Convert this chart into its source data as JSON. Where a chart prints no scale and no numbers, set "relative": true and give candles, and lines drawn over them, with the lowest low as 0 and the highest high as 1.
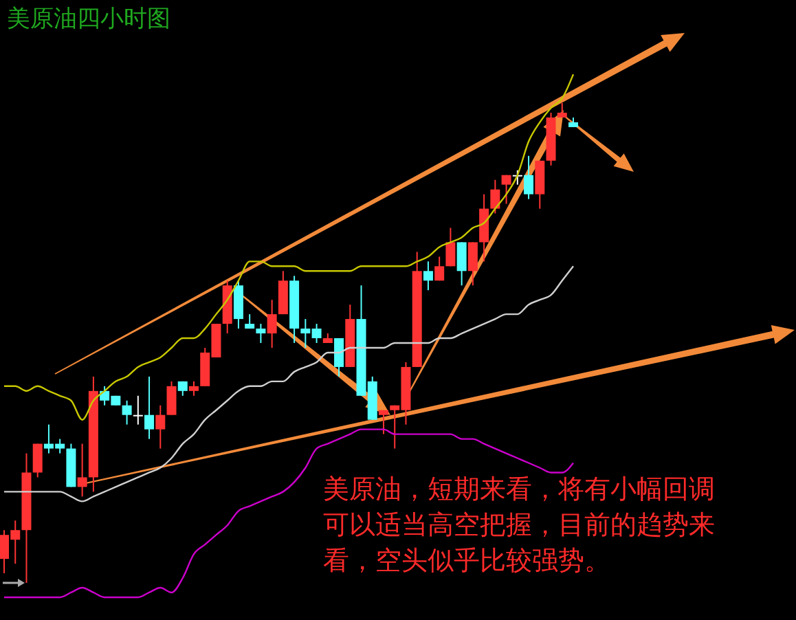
{
  "chart_data": {
    "type": "candlestick",
    "title": "美原油四小时图",
    "relative": true,
    "annotations": [
      "美原油，短期来看，将有小幅回调可以适当高空把握，目前的趋势来看，空头似乎比较强势。"
    ],
    "categories": [
      null,
      null,
      null,
      null,
      null,
      null,
      null,
      null,
      null,
      null,
      null,
      null,
      null,
      null,
      null,
      null,
      null,
      null,
      null,
      null,
      null,
      null,
      null,
      null,
      null,
      null,
      null,
      null,
      null,
      null,
      null,
      null,
      null,
      null,
      null,
      null,
      null,
      null,
      null,
      null,
      null,
      null,
      null,
      null,
      null,
      null,
      null,
      null,
      null,
      null,
      null,
      null
    ],
    "ohlc": [
      [
        0.05,
        0.11,
        0.02,
        0.1
      ],
      [
        0.09,
        0.13,
        0.04,
        0.11
      ],
      [
        0.11,
        0.27,
        0,
        0.23
      ],
      [
        0.23,
        0.29,
        0.22,
        0.29
      ],
      [
        0.29,
        0.33,
        0.27,
        0.28
      ],
      [
        0.29,
        0.3,
        0.27,
        0.28
      ],
      [
        0.28,
        0.29,
        0.2,
        0.2
      ],
      [
        0.2,
        0.29,
        0.18,
        0.22
      ],
      [
        0.22,
        0.43,
        0.19,
        0.4
      ],
      [
        0.4,
        0.41,
        0.37,
        0.38
      ],
      [
        0.39,
        0.39,
        0.37,
        0.37
      ],
      [
        0.37,
        0.38,
        0.33,
        0.35
      ],
      [
        0.35,
        0.39,
        0.33,
        0.35
      ],
      [
        0.35,
        0.43,
        0.3,
        0.32
      ],
      [
        0.32,
        0.37,
        0.28,
        0.35
      ],
      [
        0.35,
        0.42,
        0.35,
        0.41
      ],
      [
        0.42,
        0.42,
        0.39,
        0.4
      ],
      [
        0.4,
        0.42,
        0.39,
        0.41
      ],
      [
        0.41,
        0.49,
        0.41,
        0.48
      ],
      [
        0.47,
        0.54,
        0.47,
        0.54
      ],
      [
        0.54,
        0.63,
        0.52,
        0.62
      ],
      [
        0.62,
        0.63,
        0.53,
        0.55
      ],
      [
        0.54,
        0.56,
        0.53,
        0.53
      ],
      [
        0.53,
        0.54,
        0.5,
        0.52
      ],
      [
        0.52,
        0.59,
        0.49,
        0.56
      ],
      [
        0.56,
        0.65,
        0.56,
        0.63
      ],
      [
        0.63,
        0.64,
        0.5,
        0.53
      ],
      [
        0.53,
        0.55,
        0.49,
        0.52
      ],
      [
        0.53,
        0.54,
        0.5,
        0.51
      ],
      [
        0.5,
        0.52,
        0.5,
        0.51
      ],
      [
        0.51,
        0.51,
        0.43,
        0.45
      ],
      [
        0.45,
        0.58,
        0.45,
        0.55
      ],
      [
        0.55,
        0.62,
        0.39,
        0.39
      ],
      [
        0.42,
        0.43,
        0.34,
        0.34
      ],
      [
        0.35,
        0.36,
        0.31,
        0.36
      ],
      [
        0.36,
        0.37,
        0.28,
        0.37
      ],
      [
        0.36,
        0.46,
        0.33,
        0.45
      ],
      [
        0.45,
        0.69,
        0.45,
        0.65
      ],
      [
        0.65,
        0.67,
        0.61,
        0.63
      ],
      [
        0.63,
        0.68,
        0.63,
        0.66
      ],
      [
        0.66,
        0.74,
        0.66,
        0.71
      ],
      [
        0.71,
        0.71,
        0.62,
        0.65
      ],
      [
        0.65,
        0.71,
        0.62,
        0.71
      ],
      [
        0.71,
        0.81,
        0.67,
        0.78
      ],
      [
        0.78,
        0.84,
        0.77,
        0.82
      ],
      [
        0.83,
        0.85,
        0.79,
        0.85
      ],
      [
        0.85,
        0.86,
        0.83,
        0.85
      ],
      [
        0.85,
        0.89,
        0.8,
        0.81
      ],
      [
        0.81,
        0.88,
        0.78,
        0.88
      ],
      [
        0.88,
        0.98,
        0.87,
        0.97
      ],
      [
        0.97,
        1,
        0.97,
        0.98
      ],
      [
        0.96,
        0.97,
        0.95,
        0.95
      ]
    ],
    "colors": [
      "#ff3333",
      "#ff3333",
      "#ff3333",
      "#ff3333",
      "#54ffff",
      "#54ffff",
      "#54ffff",
      "#ff3333",
      "#ff3333",
      "#54ffff",
      "#54ffff",
      "#54ffff",
      "#ffffff",
      "#54ffff",
      "#ff3333",
      "#ff3333",
      "#54ffff",
      "#ff3333",
      "#ff3333",
      "#ff3333",
      "#ff3333",
      "#54ffff",
      "#54ffff",
      "#54ffff",
      "#ff3333",
      "#ff3333",
      "#54ffff",
      "#54ffff",
      "#54ffff",
      "#ff3333",
      "#54ffff",
      "#ff3333",
      "#54ffff",
      "#54ffff",
      "#ff3333",
      "#ff3333",
      "#ff3333",
      "#ff3333",
      "#54ffff",
      "#ff3333",
      "#ff3333",
      "#54ffff",
      "#ff3333",
      "#ff3333",
      "#ff3333",
      "#ff3333",
      "#ffffff",
      "#54ffff",
      "#ff3333",
      "#ff3333",
      "#ff3333",
      "#54ffff"
    ],
    "series": [
      {
        "type": "line",
        "color": "#c8c800",
        "values": [
          0.41,
          0.41,
          0.4,
          0.41,
          0.4,
          0.39,
          0.38,
          0.34,
          0.38,
          0.4,
          0.42,
          0.43,
          0.45,
          0.46,
          0.47,
          0.49,
          0.51,
          0.51,
          0.53,
          0.56,
          0.59,
          0.63,
          0.67,
          0.67,
          0.66,
          0.66,
          0.66,
          0.65,
          0.65,
          0.65,
          0.65,
          0.65,
          0.66,
          0.66,
          0.66,
          0.66,
          0.66,
          0.67,
          0.68,
          0.7,
          0.71,
          0.72,
          0.74,
          0.75,
          0.78,
          0.81,
          0.85,
          0.92,
          0.96,
          0.99,
          1.01,
          1.06
        ]
      },
      {
        "type": "line",
        "color": "#d0d0d0",
        "values": [
          0.19,
          0.19,
          0.19,
          0.19,
          0.19,
          0.19,
          0.18,
          0.17,
          0.18,
          0.19,
          0.2,
          0.21,
          0.22,
          0.23,
          0.24,
          0.26,
          0.29,
          0.31,
          0.34,
          0.36,
          0.38,
          0.4,
          0.41,
          0.41,
          0.42,
          0.42,
          0.44,
          0.45,
          0.46,
          0.48,
          0.48,
          0.49,
          0.49,
          0.49,
          0.49,
          0.5,
          0.5,
          0.5,
          0.5,
          0.51,
          0.51,
          0.52,
          0.53,
          0.54,
          0.55,
          0.56,
          0.56,
          0.58,
          0.59,
          0.6,
          0.63,
          0.66
        ]
      },
      {
        "type": "line",
        "color": "#cc00cc",
        "values": [
          -0.03,
          -0.03,
          -0.03,
          -0.03,
          -0.03,
          -0.03,
          -0.02,
          -0.01,
          -0.02,
          -0.03,
          -0.03,
          -0.03,
          -0.03,
          -0.02,
          -0.01,
          -0.02,
          0.01,
          0.06,
          0.08,
          0.1,
          0.12,
          0.15,
          0.16,
          0.17,
          0.18,
          0.19,
          0.21,
          0.24,
          0.28,
          0.29,
          0.3,
          0.31,
          0.32,
          0.32,
          0.32,
          0.31,
          0.31,
          0.31,
          0.31,
          0.31,
          0.31,
          0.3,
          0.3,
          0.29,
          0.28,
          0.27,
          0.26,
          0.25,
          0.24,
          0.23,
          0.23,
          0.25
        ]
      }
    ]
  }
}
